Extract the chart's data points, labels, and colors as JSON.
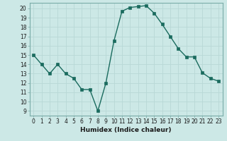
{
  "x": [
    0,
    1,
    2,
    3,
    4,
    5,
    6,
    7,
    8,
    9,
    10,
    11,
    12,
    13,
    14,
    15,
    16,
    17,
    18,
    19,
    20,
    21,
    22,
    23
  ],
  "y": [
    15,
    14,
    13,
    14,
    13,
    12.5,
    11.3,
    11.3,
    9,
    12,
    16.5,
    19.7,
    20.1,
    20.2,
    20.3,
    19.5,
    18.3,
    17,
    15.7,
    14.8,
    14.8,
    13.1,
    12.5,
    12.2
  ],
  "line_color": "#1a6b5e",
  "marker_color": "#1a6b5e",
  "bg_color": "#cce8e6",
  "grid_color": "#b8d8d6",
  "xlabel": "Humidex (Indice chaleur)",
  "xlim": [
    -0.5,
    23.5
  ],
  "ylim": [
    8.5,
    20.6
  ],
  "yticks": [
    9,
    10,
    11,
    12,
    13,
    14,
    15,
    16,
    17,
    18,
    19,
    20
  ],
  "xticks": [
    0,
    1,
    2,
    3,
    4,
    5,
    6,
    7,
    8,
    9,
    10,
    11,
    12,
    13,
    14,
    15,
    16,
    17,
    18,
    19,
    20,
    21,
    22,
    23
  ]
}
